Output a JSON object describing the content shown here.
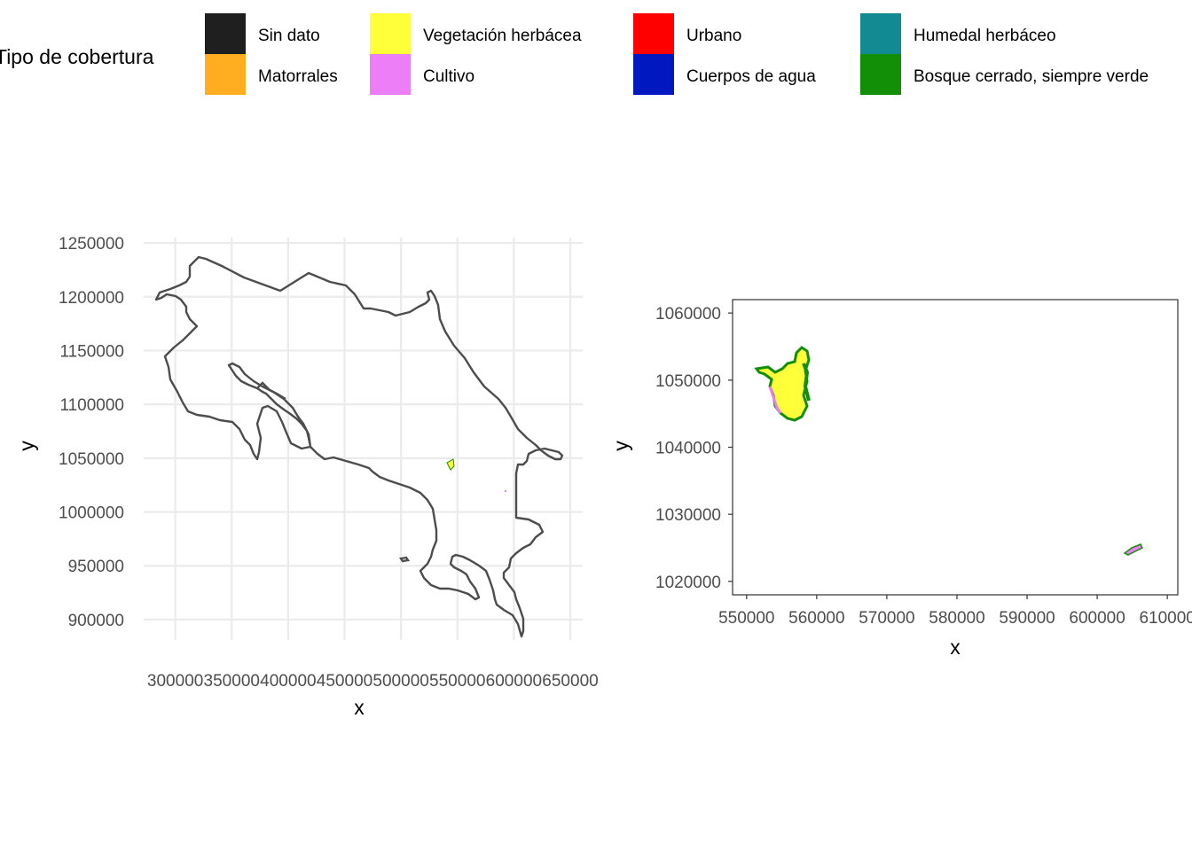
{
  "legend": {
    "title": "Tipo de cobertura",
    "items": [
      {
        "label": "Sin dato",
        "color": "#1f1f1f"
      },
      {
        "label": "Matorrales",
        "color": "#ffae22"
      },
      {
        "label": "Vegetación herbácea",
        "color": "#ffff3a"
      },
      {
        "label": "Cultivo",
        "color": "#ec7ef7"
      },
      {
        "label": "Urbano",
        "color": "#ff0000"
      },
      {
        "label": "Cuerpos de agua",
        "color": "#0018c0"
      },
      {
        "label": "Humedal herbáceo",
        "color": "#118a92"
      },
      {
        "label": "Bosque cerrado, siempre verde",
        "color": "#128f07"
      }
    ]
  },
  "chart_data": [
    {
      "type": "map",
      "xlabel": "x",
      "ylabel": "y",
      "xlim": [
        272000,
        661000
      ],
      "ylim": [
        881000,
        1255000
      ],
      "x_ticks": [
        300000,
        350000,
        400000,
        450000,
        500000,
        550000,
        600000,
        650000
      ],
      "y_ticks": [
        900000,
        950000,
        1000000,
        1050000,
        1100000,
        1150000,
        1200000,
        1250000
      ],
      "grid": true,
      "panel_border": false,
      "outline_color": "#4d4d4d"
    },
    {
      "type": "map",
      "xlabel": "x",
      "ylabel": "y",
      "xlim": [
        548000,
        611500
      ],
      "ylim": [
        1018000,
        1062000
      ],
      "x_ticks": [
        550000,
        560000,
        570000,
        580000,
        590000,
        600000,
        610000
      ],
      "y_ticks": [
        1020000,
        1030000,
        1040000,
        1050000,
        1060000
      ],
      "grid": false,
      "panel_border": true
    }
  ]
}
